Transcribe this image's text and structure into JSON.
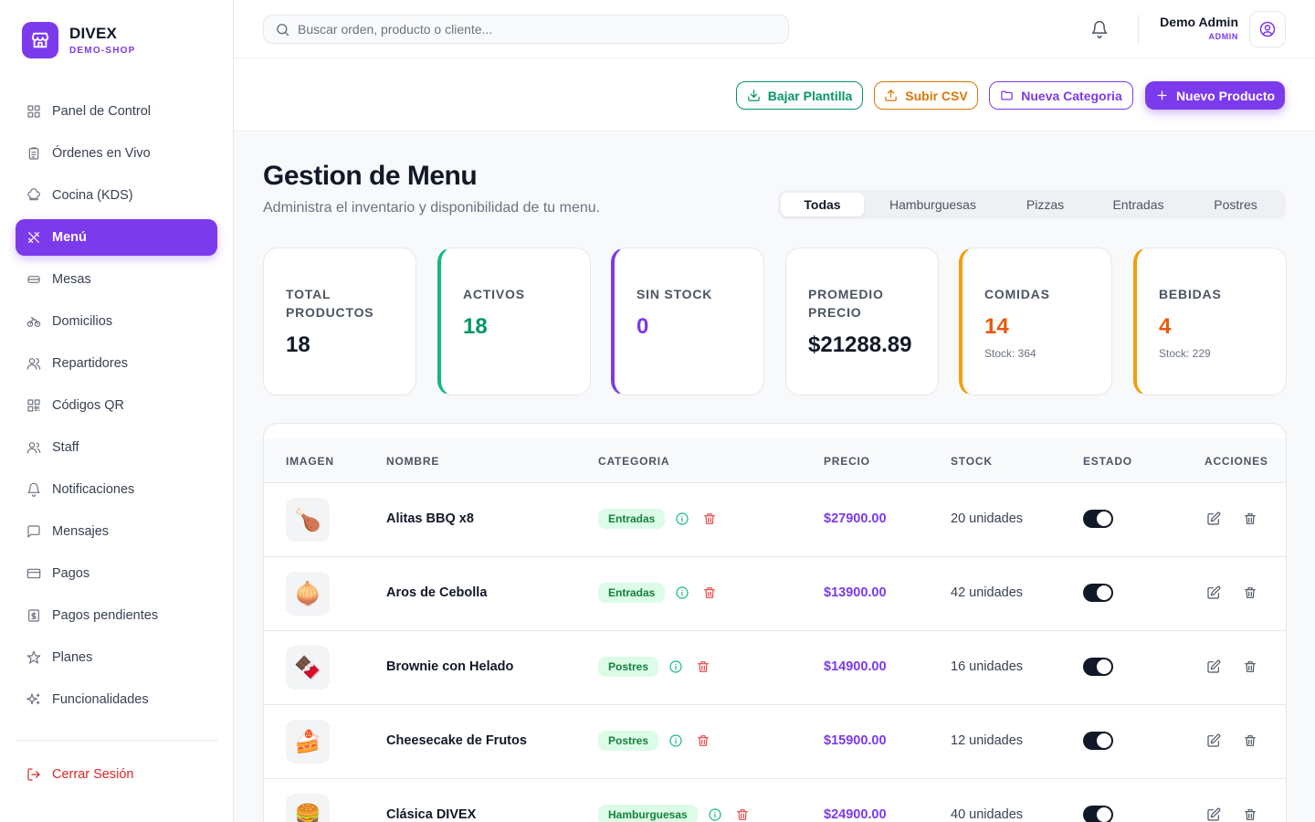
{
  "brand": {
    "name": "DIVEX",
    "subtitle": "DEMO-SHOP"
  },
  "sidebar": {
    "items": [
      {
        "label": "Panel de Control",
        "icon": "dashboard-icon"
      },
      {
        "label": "Órdenes en Vivo",
        "icon": "clipboard-icon"
      },
      {
        "label": "Cocina (KDS)",
        "icon": "chef-hat-icon"
      },
      {
        "label": "Menú",
        "icon": "utensils-icon",
        "active": true
      },
      {
        "label": "Mesas",
        "icon": "table-icon"
      },
      {
        "label": "Domicilios",
        "icon": "bike-icon"
      },
      {
        "label": "Repartidores",
        "icon": "users-icon"
      },
      {
        "label": "Códigos QR",
        "icon": "qr-code-icon"
      },
      {
        "label": "Staff",
        "icon": "user-group-icon"
      },
      {
        "label": "Notificaciones",
        "icon": "bell-icon"
      },
      {
        "label": "Mensajes",
        "icon": "message-icon"
      },
      {
        "label": "Pagos",
        "icon": "credit-card-icon"
      },
      {
        "label": "Pagos pendientes",
        "icon": "receipt-icon"
      },
      {
        "label": "Planes",
        "icon": "star-icon"
      },
      {
        "label": "Funcionalidades",
        "icon": "sparkles-icon"
      }
    ],
    "logout": "Cerrar Sesión"
  },
  "search": {
    "placeholder": "Buscar orden, producto o cliente..."
  },
  "user": {
    "name": "Demo Admin",
    "role": "ADMIN"
  },
  "actions": {
    "download": "Bajar Plantilla",
    "upload": "Subir CSV",
    "new_category": "Nueva Categoria",
    "new_product": "Nuevo Producto"
  },
  "page": {
    "title": "Gestion de Menu",
    "subtitle": "Administra el inventario y disponibilidad de tu menu."
  },
  "tabs": [
    {
      "label": "Todas",
      "active": true
    },
    {
      "label": "Hamburguesas"
    },
    {
      "label": "Pizzas"
    },
    {
      "label": "Entradas"
    },
    {
      "label": "Postres"
    }
  ],
  "stats": [
    {
      "label": "TOTAL PRODUCTOS",
      "value": "18"
    },
    {
      "label": "ACTIVOS",
      "value": "18"
    },
    {
      "label": "SIN STOCK",
      "value": "0"
    },
    {
      "label": "PROMEDIO PRECIO",
      "value": "$21288.89"
    },
    {
      "label": "COMIDAS",
      "value": "14",
      "note": "Stock: 364"
    },
    {
      "label": "BEBIDAS",
      "value": "4",
      "note": "Stock: 229"
    }
  ],
  "colors": {
    "accent": "#7c3aed",
    "success": "#059669",
    "warning": "#d97706",
    "danger": "#dc2626"
  },
  "table": {
    "headers": [
      "IMAGEN",
      "NOMBRE",
      "CATEGORIA",
      "PRECIO",
      "STOCK",
      "ESTADO",
      "ACCIONES"
    ],
    "rows": [
      {
        "image": "🍗",
        "name": "Alitas BBQ x8",
        "category": "Entradas",
        "price": "$27900.00",
        "stock": "20 unidades",
        "active": true
      },
      {
        "image": "🧅",
        "name": "Aros de Cebolla",
        "category": "Entradas",
        "price": "$13900.00",
        "stock": "42 unidades",
        "active": true
      },
      {
        "image": "🍫",
        "name": "Brownie con Helado",
        "category": "Postres",
        "price": "$14900.00",
        "stock": "16 unidades",
        "active": true
      },
      {
        "image": "🍰",
        "name": "Cheesecake de Frutos",
        "category": "Postres",
        "price": "$15900.00",
        "stock": "12 unidades",
        "active": true
      },
      {
        "image": "🍔",
        "name": "Clásica DIVEX",
        "category": "Hamburguesas",
        "price": "$24900.00",
        "stock": "40 unidades",
        "active": true
      }
    ]
  }
}
